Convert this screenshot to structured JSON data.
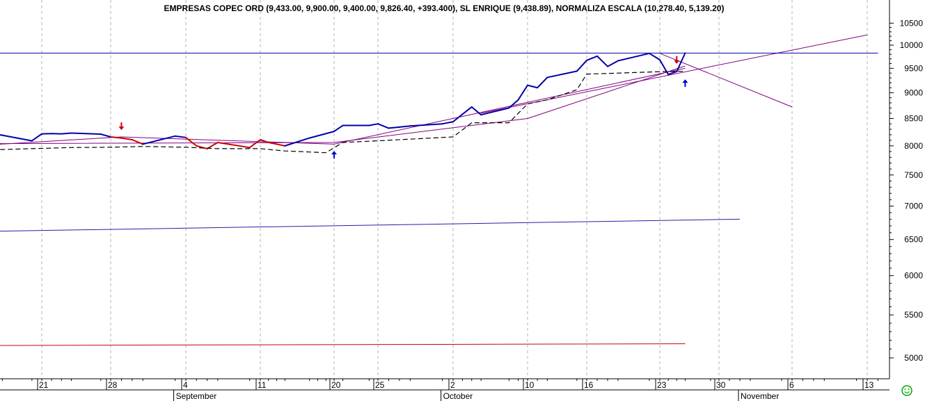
{
  "chart_data": {
    "type": "line",
    "title": "EMPRESAS COPEC ORD (9,433.00, 9,900.00, 9,400.00, 9,826.40, +393.400), SL ENRIQUE (9,438.89), NORMALIZA ESCALA (10,278.40, 5,139.20)",
    "y_scale": "log",
    "ylim": [
      4800,
      10900
    ],
    "y_ticks": [
      "10500",
      "10000",
      "9500",
      "9000",
      "8500",
      "8000",
      "7500",
      "7000",
      "6500",
      "6000",
      "5500",
      "5000"
    ],
    "x_ticks": [
      {
        "date": "2018-08-21",
        "label": "21"
      },
      {
        "date": "2018-08-28",
        "label": "28"
      },
      {
        "date": "2018-09-04",
        "label": "4"
      },
      {
        "date": "2018-09-11",
        "label": "11"
      },
      {
        "date": "2018-09-20",
        "label": "20"
      },
      {
        "date": "2018-09-25",
        "label": "25"
      },
      {
        "date": "2018-10-02",
        "label": "2"
      },
      {
        "date": "2018-10-10",
        "label": "10"
      },
      {
        "date": "2018-10-16",
        "label": "16"
      },
      {
        "date": "2018-10-23",
        "label": "23"
      },
      {
        "date": "2018-10-30",
        "label": "30"
      },
      {
        "date": "2018-11-06",
        "label": "6"
      },
      {
        "date": "2018-11-13",
        "label": "13"
      }
    ],
    "months": [
      {
        "date": "2018-09-03",
        "label": "September"
      },
      {
        "date": "2018-10-01",
        "label": "October"
      },
      {
        "date": "2018-11-01",
        "label": "November"
      }
    ],
    "series": [
      {
        "name": "EMPRESAS COPEC ORD",
        "color": "#0000aa",
        "down_color": "#cc0000",
        "points": [
          [
            "2018-08-16",
            8220,
            "up"
          ],
          [
            "2018-08-17",
            8190,
            "up"
          ],
          [
            "2018-08-20",
            8090,
            "up"
          ],
          [
            "2018-08-21",
            8215,
            "up"
          ],
          [
            "2018-08-22",
            8220,
            "up"
          ],
          [
            "2018-08-23",
            8215,
            "up"
          ],
          [
            "2018-08-24",
            8230,
            "up"
          ],
          [
            "2018-08-27",
            8210,
            "up"
          ],
          [
            "2018-08-28",
            8160,
            "up"
          ],
          [
            "2018-08-29",
            8140,
            "dn"
          ],
          [
            "2018-08-30",
            8110,
            "dn"
          ],
          [
            "2018-08-31",
            8030,
            "dn"
          ],
          [
            "2018-09-03",
            8175,
            "up"
          ],
          [
            "2018-09-04",
            8150,
            "up"
          ],
          [
            "2018-09-05",
            8000,
            "dn"
          ],
          [
            "2018-09-06",
            7950,
            "dn"
          ],
          [
            "2018-09-07",
            8060,
            "dn"
          ],
          [
            "2018-09-10",
            7970,
            "dn"
          ],
          [
            "2018-09-11",
            8110,
            "dn"
          ],
          [
            "2018-09-12",
            8060,
            "dn"
          ],
          [
            "2018-09-13",
            8030,
            "dn"
          ],
          [
            "2018-09-14",
            8000,
            "dn"
          ],
          [
            "2018-09-17",
            8140,
            "up"
          ],
          [
            "2018-09-20",
            8260,
            "up"
          ],
          [
            "2018-09-21",
            8370,
            "up"
          ],
          [
            "2018-09-24",
            8370,
            "up"
          ],
          [
            "2018-09-25",
            8400,
            "up"
          ],
          [
            "2018-09-26",
            8320,
            "up"
          ],
          [
            "2018-09-27",
            8340,
            "up"
          ],
          [
            "2018-09-28",
            8360,
            "up"
          ],
          [
            "2018-10-01",
            8400,
            "up"
          ],
          [
            "2018-10-02",
            8440,
            "up"
          ],
          [
            "2018-10-03",
            8580,
            "up"
          ],
          [
            "2018-10-04",
            8720,
            "up"
          ],
          [
            "2018-10-05",
            8570,
            "up"
          ],
          [
            "2018-10-08",
            8700,
            "up"
          ],
          [
            "2018-10-09",
            8860,
            "up"
          ],
          [
            "2018-10-10",
            9150,
            "up"
          ],
          [
            "2018-10-11",
            9100,
            "up"
          ],
          [
            "2018-10-12",
            9310,
            "up"
          ],
          [
            "2018-10-15",
            9440,
            "up"
          ],
          [
            "2018-10-16",
            9670,
            "up"
          ],
          [
            "2018-10-17",
            9760,
            "up"
          ],
          [
            "2018-10-18",
            9540,
            "up"
          ],
          [
            "2018-10-19",
            9660,
            "up"
          ],
          [
            "2018-10-22",
            9820,
            "up"
          ],
          [
            "2018-10-23",
            9680,
            "up"
          ],
          [
            "2018-10-24",
            9370,
            "up"
          ],
          [
            "2018-10-25",
            9433,
            "up"
          ],
          [
            "2018-10-26",
            9826.4,
            "up"
          ]
        ]
      },
      {
        "name": "SL ENRIQUE",
        "color": "#000000",
        "points": [
          [
            "2018-08-16",
            7930
          ],
          [
            "2018-08-20",
            7950
          ],
          [
            "2018-08-24",
            7970
          ],
          [
            "2018-08-28",
            7975
          ],
          [
            "2018-08-31",
            7990
          ],
          [
            "2018-09-04",
            7975
          ],
          [
            "2018-09-07",
            7950
          ],
          [
            "2018-09-11",
            7950
          ],
          [
            "2018-09-14",
            7910
          ],
          [
            "2018-09-19",
            7880
          ],
          [
            "2018-09-21",
            8060
          ],
          [
            "2018-09-25",
            8090
          ],
          [
            "2018-09-28",
            8120
          ],
          [
            "2018-10-02",
            8160
          ],
          [
            "2018-10-04",
            8420
          ],
          [
            "2018-10-08",
            8420
          ],
          [
            "2018-10-10",
            8780
          ],
          [
            "2018-10-12",
            8860
          ],
          [
            "2018-10-15",
            9060
          ],
          [
            "2018-10-16",
            9380
          ],
          [
            "2018-10-19",
            9400
          ],
          [
            "2018-10-23",
            9430
          ],
          [
            "2018-10-26",
            9438.89
          ]
        ]
      }
    ],
    "trendlines": [
      {
        "name": "line1",
        "color": "#800080",
        "points": [
          [
            "2018-08-16",
            8040
          ],
          [
            "2018-09-20",
            8060
          ],
          [
            "2018-10-10",
            8500
          ],
          [
            "2018-10-26",
            9550
          ]
        ]
      },
      {
        "name": "line2",
        "color": "#800080",
        "points": [
          [
            "2018-08-16",
            8020
          ],
          [
            "2018-08-29",
            8160
          ],
          [
            "2018-09-20",
            8030
          ],
          [
            "2018-10-26",
            9500
          ]
        ]
      },
      {
        "name": "line3",
        "color": "#800080",
        "points": [
          [
            "2018-10-05",
            8600
          ],
          [
            "2018-11-13",
            10230
          ]
        ]
      },
      {
        "name": "line4",
        "color": "#800080",
        "points": [
          [
            "2018-10-23",
            9820
          ],
          [
            "2018-11-06",
            8720
          ]
        ]
      },
      {
        "name": "horizontal",
        "color": "#0000aa",
        "points": [
          [
            "2018-08-16",
            9826.4
          ],
          [
            "2018-11-14",
            9826.4
          ]
        ]
      },
      {
        "name": "lower_band",
        "color": "#2020aa",
        "points": [
          [
            "2018-08-16",
            6620
          ],
          [
            "2018-11-01",
            6800
          ]
        ]
      },
      {
        "name": "bottom_band",
        "color": "#cc0000",
        "points": [
          [
            "2018-08-16",
            5140
          ],
          [
            "2018-10-26",
            5160
          ]
        ]
      }
    ],
    "markers": [
      {
        "date": "2018-08-29",
        "type": "down",
        "color": "#cc0000",
        "value": 8350
      },
      {
        "date": "2018-09-20",
        "type": "up",
        "color": "#0000cc",
        "value": 7850
      },
      {
        "date": "2018-10-25",
        "type": "down",
        "color": "#cc0000",
        "value": 9670
      },
      {
        "date": "2018-10-26",
        "type": "up",
        "color": "#0000cc",
        "value": 9200
      }
    ],
    "x_range": [
      "2018-08-16",
      "2018-11-14"
    ],
    "grid": "vertical-dashed",
    "legend": "none"
  }
}
